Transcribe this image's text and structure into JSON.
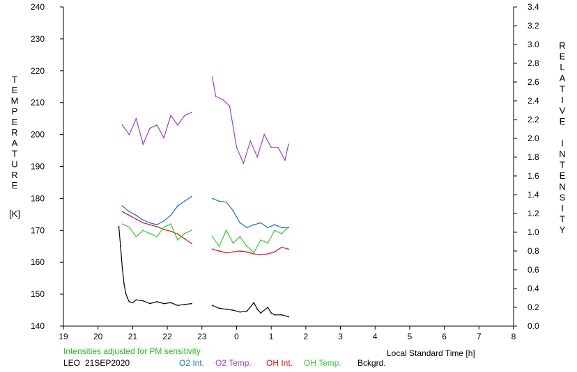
{
  "chart_data": {
    "type": "line",
    "station": "LEO",
    "date": "21SEP2020",
    "note": "Intensities adjusted for PM sensitivity",
    "note_color": "#22bb22",
    "xlabel": "Local Standard Time [h]",
    "ylabel_left_letters": [
      "T",
      "E",
      "M",
      "P",
      "E",
      "R",
      "A",
      "T",
      "U",
      "R",
      "E"
    ],
    "ylabel_left_unit": "[K]",
    "ylabel_right_letters": [
      "R",
      "E",
      "L",
      "A",
      "T",
      "I",
      "V",
      "E",
      "",
      "I",
      "N",
      "T",
      "E",
      "N",
      "S",
      "I",
      "T",
      "Y"
    ],
    "xlim": [
      19,
      32
    ],
    "x_ticks": [
      19,
      20,
      21,
      22,
      23,
      24,
      25,
      26,
      27,
      28,
      29,
      30,
      31,
      32
    ],
    "x_tick_labels": [
      "19",
      "20",
      "21",
      "22",
      "23",
      "0",
      "1",
      "2",
      "3",
      "4",
      "5",
      "6",
      "7",
      "8"
    ],
    "ylim_left": [
      140,
      240
    ],
    "ylim_right": [
      0.0,
      3.4
    ],
    "y_left_ticks": [
      140,
      150,
      160,
      170,
      180,
      190,
      200,
      210,
      220,
      230,
      240
    ],
    "y_left_tick_labels": [
      "140",
      "150",
      "160",
      "170",
      "180",
      "190",
      "200",
      "210",
      "220",
      "230",
      "240"
    ],
    "y_right_ticks": [
      0.0,
      0.2,
      0.4,
      0.6,
      0.8,
      1.0,
      1.2,
      1.4,
      1.6,
      1.8,
      2.0,
      2.2,
      2.4,
      2.6,
      2.8,
      3.0,
      3.2,
      3.4
    ],
    "y_right_tick_labels": [
      "0.0",
      "0.2",
      "0.4",
      "0.6",
      "0.8",
      "1.0",
      "1.2",
      "1.4",
      "1.6",
      "1.8",
      "2.0",
      "2.2",
      "2.4",
      "2.6",
      "2.8",
      "3.0",
      "3.2",
      "3.4"
    ],
    "grid": false,
    "legend": "bottom",
    "series": [
      {
        "name": "O2 Int.",
        "axis": "right",
        "color": "#1a6fd6",
        "segments": [
          {
            "x": [
              20.7,
              20.9,
              21.1,
              21.3,
              21.5,
              21.7,
              21.9,
              22.1,
              22.3,
              22.5,
              22.7
            ],
            "y": [
              1.28,
              1.22,
              1.18,
              1.13,
              1.1,
              1.08,
              1.12,
              1.18,
              1.28,
              1.33,
              1.38
            ]
          },
          {
            "x": [
              23.3,
              23.5,
              23.7,
              23.9,
              24.1,
              24.3,
              24.5,
              24.7,
              24.9,
              25.1,
              25.3,
              25.5
            ],
            "y": [
              1.36,
              1.33,
              1.32,
              1.23,
              1.1,
              1.05,
              1.08,
              1.1,
              1.05,
              1.08,
              1.05,
              1.05
            ]
          }
        ]
      },
      {
        "name": "O2 Temp.",
        "axis": "left",
        "color": "#9a3fd0",
        "segments": [
          {
            "x": [
              20.7,
              20.9,
              21.1,
              21.3,
              21.5,
              21.7,
              21.9,
              22.1,
              22.3,
              22.5,
              22.7
            ],
            "y": [
              203,
              200,
              205,
              197,
              202,
              203,
              199,
              206,
              203,
              206,
              207
            ]
          },
          {
            "x": [
              23.3,
              23.4,
              23.6,
              23.8,
              24.0,
              24.2,
              24.4,
              24.6,
              24.8,
              25.0,
              25.2,
              25.4,
              25.5
            ],
            "y": [
              218,
              212,
              211,
              209,
              196,
              191,
              198,
              193,
              200,
              196,
              196,
              192,
              197
            ]
          }
        ]
      },
      {
        "name": "OH Int.",
        "axis": "right",
        "color": "#dd1111",
        "segments": [
          {
            "x": [
              20.7,
              20.9,
              21.1,
              21.3,
              21.5,
              21.7,
              21.9,
              22.1,
              22.3,
              22.5,
              22.7
            ],
            "y": [
              1.22,
              1.18,
              1.14,
              1.1,
              1.08,
              1.06,
              1.03,
              1.01,
              0.98,
              0.93,
              0.88
            ]
          },
          {
            "x": [
              23.3,
              23.5,
              23.7,
              23.9,
              24.1,
              24.3,
              24.5,
              24.7,
              24.9,
              25.1,
              25.3,
              25.5
            ],
            "y": [
              0.82,
              0.8,
              0.78,
              0.79,
              0.8,
              0.79,
              0.77,
              0.76,
              0.77,
              0.79,
              0.84,
              0.82
            ]
          }
        ]
      },
      {
        "name": "OH Temp.",
        "axis": "left",
        "color": "#33cc33",
        "segments": [
          {
            "x": [
              20.7,
              20.9,
              21.1,
              21.3,
              21.5,
              21.7,
              21.9,
              22.1,
              22.3,
              22.5,
              22.7
            ],
            "y": [
              172,
              171,
              168,
              170,
              169,
              168,
              171,
              172,
              167,
              169,
              170
            ]
          },
          {
            "x": [
              23.3,
              23.5,
              23.7,
              23.9,
              24.1,
              24.3,
              24.5,
              24.7,
              24.9,
              25.1,
              25.3,
              25.5
            ],
            "y": [
              168,
              165,
              170,
              166,
              168,
              165,
              163,
              167,
              166,
              170,
              169,
              171
            ]
          }
        ]
      },
      {
        "name": "Bckgrd.",
        "axis": "right",
        "color": "#000000",
        "segments": [
          {
            "x": [
              20.6,
              20.65,
              20.7,
              20.75,
              20.8,
              20.85,
              20.9,
              21.0,
              21.1,
              21.3,
              21.5,
              21.7,
              21.9,
              22.1,
              22.3,
              22.5,
              22.7
            ],
            "y": [
              1.06,
              0.85,
              0.62,
              0.45,
              0.35,
              0.3,
              0.26,
              0.25,
              0.28,
              0.27,
              0.24,
              0.26,
              0.24,
              0.25,
              0.22,
              0.23,
              0.24
            ]
          },
          {
            "x": [
              23.3,
              23.5,
              23.7,
              23.9,
              24.1,
              24.3,
              24.5,
              24.6,
              24.7,
              24.9,
              25.0,
              25.1,
              25.3,
              25.5
            ],
            "y": [
              0.22,
              0.19,
              0.18,
              0.17,
              0.15,
              0.16,
              0.25,
              0.18,
              0.14,
              0.2,
              0.14,
              0.12,
              0.12,
              0.1
            ]
          }
        ]
      }
    ]
  }
}
